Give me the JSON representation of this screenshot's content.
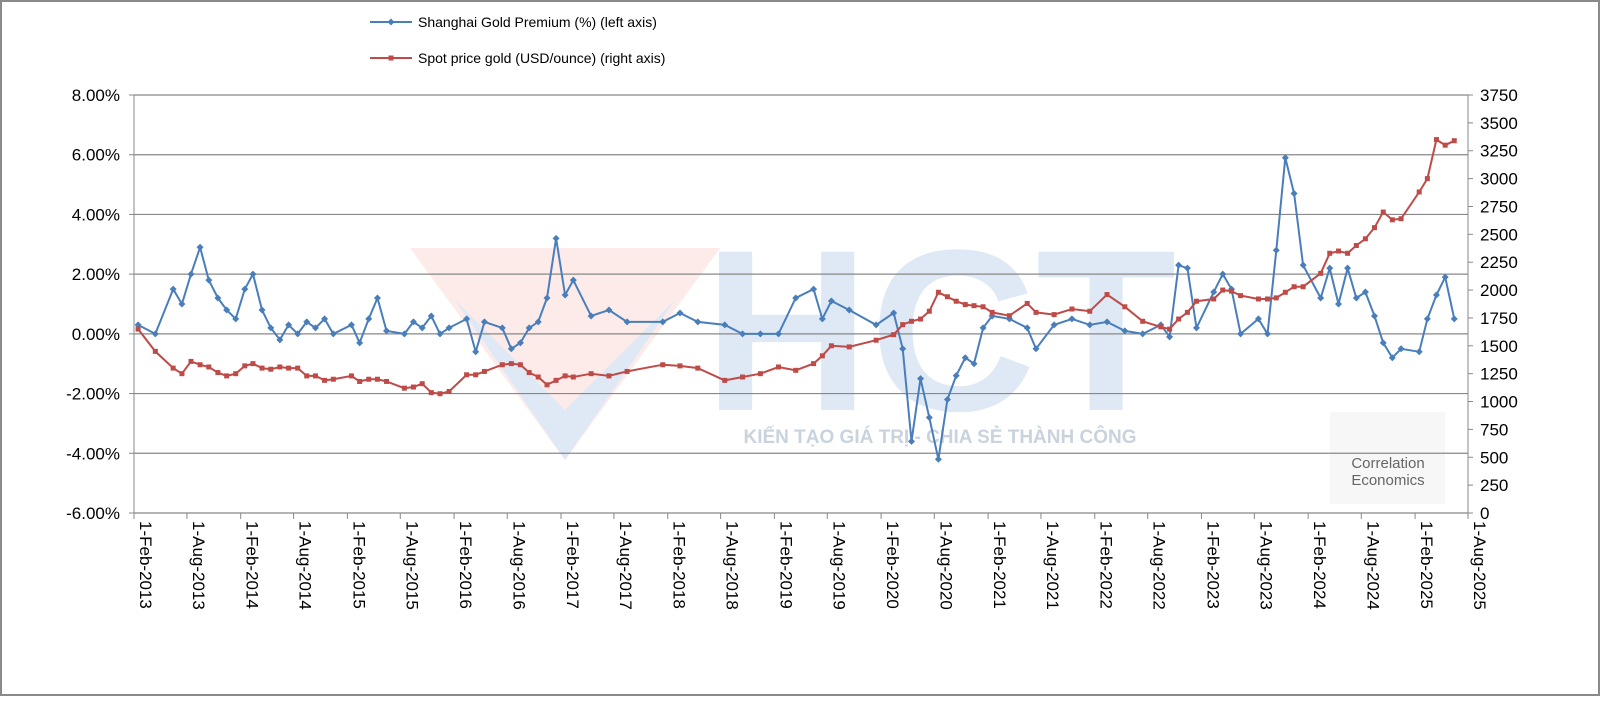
{
  "chart_data": {
    "type": "line",
    "x": [
      "2013-02-15",
      "2013-04-15",
      "2013-06-15",
      "2013-07-15",
      "2013-08-15",
      "2013-09-15",
      "2013-10-15",
      "2013-11-15",
      "2013-12-15",
      "2014-01-15",
      "2014-02-15",
      "2014-03-15",
      "2014-04-15",
      "2014-05-15",
      "2014-06-15",
      "2014-07-15",
      "2014-08-15",
      "2014-09-15",
      "2014-10-15",
      "2014-11-15",
      "2014-12-15",
      "2015-02-15",
      "2015-03-15",
      "2015-04-15",
      "2015-05-15",
      "2015-06-15",
      "2015-08-15",
      "2015-09-15",
      "2015-10-15",
      "2015-11-15",
      "2015-12-15",
      "2016-01-15",
      "2016-03-15",
      "2016-04-15",
      "2016-05-15",
      "2016-07-15",
      "2016-08-15",
      "2016-09-15",
      "2016-10-15",
      "2016-11-15",
      "2016-12-15",
      "2017-01-15",
      "2017-02-15",
      "2017-03-15",
      "2017-05-15",
      "2017-07-15",
      "2017-09-15",
      "2018-01-15",
      "2018-03-15",
      "2018-05-15",
      "2018-08-15",
      "2018-10-15",
      "2018-12-15",
      "2019-02-15",
      "2019-04-15",
      "2019-06-15",
      "2019-07-15",
      "2019-08-15",
      "2019-10-15",
      "2020-01-15",
      "2020-03-15",
      "2020-04-15",
      "2020-05-15",
      "2020-06-15",
      "2020-07-15",
      "2020-08-15",
      "2020-09-15",
      "2020-10-15",
      "2020-11-15",
      "2020-12-15",
      "2021-01-15",
      "2021-02-15",
      "2021-04-15",
      "2021-06-15",
      "2021-07-15",
      "2021-09-15",
      "2021-11-15",
      "2022-01-15",
      "2022-03-15",
      "2022-05-15",
      "2022-07-15",
      "2022-09-15",
      "2022-10-15",
      "2022-11-15",
      "2022-12-15",
      "2023-01-15",
      "2023-03-15",
      "2023-04-15",
      "2023-05-15",
      "2023-06-15",
      "2023-08-15",
      "2023-09-15",
      "2023-10-15",
      "2023-11-15",
      "2023-12-15",
      "2024-01-15",
      "2024-03-15",
      "2024-04-15",
      "2024-05-15",
      "2024-06-15",
      "2024-07-15",
      "2024-08-15",
      "2024-09-15",
      "2024-10-15",
      "2024-11-15",
      "2024-12-15",
      "2025-02-15",
      "2025-03-15",
      "2025-04-15",
      "2025-05-15",
      "2025-06-15"
    ],
    "series": [
      {
        "name": "Shanghai Gold Premium (%) (left axis)",
        "color": "#4a7ebb",
        "marker": "diamond",
        "values": [
          0.3,
          0.0,
          1.5,
          1.0,
          2.0,
          2.9,
          1.8,
          1.2,
          0.8,
          0.5,
          1.5,
          2.0,
          0.8,
          0.2,
          -0.2,
          0.3,
          0.0,
          0.4,
          0.2,
          0.5,
          0.0,
          0.3,
          -0.3,
          0.5,
          1.2,
          0.1,
          0.0,
          0.4,
          0.2,
          0.6,
          0.0,
          0.2,
          0.5,
          -0.6,
          0.4,
          0.2,
          -0.5,
          -0.3,
          0.2,
          0.4,
          1.2,
          3.2,
          1.3,
          1.8,
          0.6,
          0.8,
          0.4,
          0.4,
          0.7,
          0.4,
          0.3,
          0.0,
          0.0,
          0.0,
          1.2,
          1.5,
          0.5,
          1.1,
          0.8,
          0.3,
          0.7,
          -0.5,
          -3.6,
          -1.5,
          -2.8,
          -4.2,
          -2.2,
          -1.4,
          -0.8,
          -1.0,
          0.2,
          0.6,
          0.5,
          0.2,
          -0.5,
          0.3,
          0.5,
          0.3,
          0.4,
          0.1,
          0.0,
          0.3,
          -0.1,
          2.3,
          2.2,
          0.2,
          1.4,
          2.0,
          1.5,
          0.0,
          0.5,
          0.0,
          2.8,
          5.9,
          4.7,
          2.3,
          1.2,
          2.2,
          1.0,
          2.2,
          1.2,
          1.4,
          0.6,
          -0.3,
          -0.8,
          -0.5,
          -0.6,
          0.5,
          1.3,
          1.9,
          0.5
        ]
      },
      {
        "name": "Spot price gold (USD/ounce) (right axis)",
        "color": "#be4b48",
        "marker": "square",
        "axis": "y2",
        "values": [
          1650,
          1450,
          1300,
          1250,
          1360,
          1330,
          1310,
          1260,
          1230,
          1250,
          1320,
          1340,
          1300,
          1290,
          1310,
          1300,
          1300,
          1230,
          1230,
          1190,
          1200,
          1230,
          1180,
          1200,
          1200,
          1180,
          1120,
          1130,
          1160,
          1080,
          1070,
          1090,
          1240,
          1240,
          1270,
          1330,
          1340,
          1330,
          1260,
          1220,
          1150,
          1190,
          1230,
          1220,
          1250,
          1230,
          1270,
          1330,
          1320,
          1300,
          1190,
          1220,
          1250,
          1310,
          1280,
          1340,
          1410,
          1500,
          1490,
          1550,
          1600,
          1690,
          1720,
          1740,
          1810,
          1980,
          1940,
          1900,
          1870,
          1860,
          1850,
          1800,
          1770,
          1880,
          1800,
          1780,
          1830,
          1810,
          1960,
          1850,
          1720,
          1670,
          1650,
          1740,
          1800,
          1900,
          1920,
          2000,
          1990,
          1950,
          1920,
          1920,
          1930,
          1980,
          2030,
          2030,
          2150,
          2330,
          2350,
          2330,
          2400,
          2460,
          2560,
          2700,
          2630,
          2640,
          2880,
          3000,
          3350,
          3300,
          3340
        ]
      }
    ],
    "xlim": [
      "2013-02-01",
      "2025-08-01"
    ],
    "xticks": [
      {
        "value": "2013-02-01",
        "label": "1-Feb-2013"
      },
      {
        "value": "2013-08-01",
        "label": "1-Aug-2013"
      },
      {
        "value": "2014-02-01",
        "label": "1-Feb-2014"
      },
      {
        "value": "2014-08-01",
        "label": "1-Aug-2014"
      },
      {
        "value": "2015-02-01",
        "label": "1-Feb-2015"
      },
      {
        "value": "2015-08-01",
        "label": "1-Aug-2015"
      },
      {
        "value": "2016-02-01",
        "label": "1-Feb-2016"
      },
      {
        "value": "2016-08-01",
        "label": "1-Aug-2016"
      },
      {
        "value": "2017-02-01",
        "label": "1-Feb-2017"
      },
      {
        "value": "2017-08-01",
        "label": "1-Aug-2017"
      },
      {
        "value": "2018-02-01",
        "label": "1-Feb-2018"
      },
      {
        "value": "2018-08-01",
        "label": "1-Aug-2018"
      },
      {
        "value": "2019-02-01",
        "label": "1-Feb-2019"
      },
      {
        "value": "2019-08-01",
        "label": "1-Aug-2019"
      },
      {
        "value": "2020-02-01",
        "label": "1-Feb-2020"
      },
      {
        "value": "2020-08-01",
        "label": "1-Aug-2020"
      },
      {
        "value": "2021-02-01",
        "label": "1-Feb-2021"
      },
      {
        "value": "2021-08-01",
        "label": "1-Aug-2021"
      },
      {
        "value": "2022-02-01",
        "label": "1-Feb-2022"
      },
      {
        "value": "2022-08-01",
        "label": "1-Aug-2022"
      },
      {
        "value": "2023-02-01",
        "label": "1-Feb-2023"
      },
      {
        "value": "2023-08-01",
        "label": "1-Aug-2023"
      },
      {
        "value": "2024-02-01",
        "label": "1-Feb-2024"
      },
      {
        "value": "2024-08-01",
        "label": "1-Aug-2024"
      },
      {
        "value": "2025-02-01",
        "label": "1-Feb-2025"
      },
      {
        "value": "2025-08-01",
        "label": "1-Aug-2025"
      }
    ],
    "ylim": [
      -6,
      8
    ],
    "yticks": [
      {
        "value": -6,
        "label": "-6.00%"
      },
      {
        "value": -4,
        "label": "-4.00%"
      },
      {
        "value": -2,
        "label": "-2.00%"
      },
      {
        "value": 0,
        "label": "0.00%"
      },
      {
        "value": 2,
        "label": "2.00%"
      },
      {
        "value": 4,
        "label": "4.00%"
      },
      {
        "value": 6,
        "label": "6.00%"
      },
      {
        "value": 8,
        "label": "8.00%"
      }
    ],
    "y2lim": [
      0,
      3750
    ],
    "y2ticks": [
      0,
      250,
      500,
      750,
      1000,
      1250,
      1500,
      1750,
      2000,
      2250,
      2500,
      2750,
      3000,
      3250,
      3500,
      3750
    ],
    "grid": true,
    "legend": "top"
  },
  "watermarks": {
    "logo": "HCT",
    "tagline": "KIẾN TẠO GIÁ TRỊ - CHIA SẺ THÀNH CÔNG",
    "brand": "Correlation Economics"
  }
}
